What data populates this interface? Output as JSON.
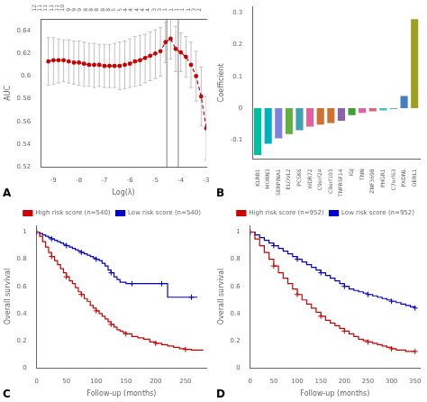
{
  "chart_data": [
    {
      "type": "line",
      "xlabel": "Log(λ)",
      "ylabel": "AUC",
      "x": [
        -9.2,
        -9.0,
        -8.8,
        -8.6,
        -8.4,
        -8.2,
        -8.0,
        -7.8,
        -7.6,
        -7.4,
        -7.2,
        -7.0,
        -6.8,
        -6.6,
        -6.4,
        -6.2,
        -6.0,
        -5.8,
        -5.6,
        -5.4,
        -5.2,
        -5.0,
        -4.8,
        -4.6,
        -4.4,
        -4.2,
        -4.0,
        -3.8,
        -3.6,
        -3.4,
        -3.2,
        -3.0
      ],
      "xlim": [
        -9.5,
        -3.0
      ],
      "xticks": [
        -9,
        -8,
        -7,
        -6,
        -5,
        -4,
        -3
      ],
      "ylim": [
        0.52,
        0.65
      ],
      "yticks": [
        0.52,
        0.54,
        0.56,
        0.58,
        0.6,
        0.62,
        0.64
      ],
      "x2lim": [
        -9.5,
        -3.0
      ],
      "x2ticks": [
        {
          "value": -9.5,
          "label": "12"
        },
        {
          "value": -9.275862069,
          "label": "11"
        },
        {
          "value": -9.0517241379,
          "label": "11"
        },
        {
          "value": -8.8275862069,
          "label": "11"
        },
        {
          "value": -8.6034482759,
          "label": "11"
        },
        {
          "value": -8.3793103448,
          "label": "10"
        },
        {
          "value": -8.1551724138,
          "label": "9"
        },
        {
          "value": -7.9310344828,
          "label": "9"
        },
        {
          "value": -7.7068965517,
          "label": "9"
        },
        {
          "value": -7.4827586207,
          "label": "8"
        },
        {
          "value": -7.2586206897,
          "label": "8"
        },
        {
          "value": -7.0344827586,
          "label": "8"
        },
        {
          "value": -6.8103448276,
          "label": "8"
        },
        {
          "value": -6.5862068966,
          "label": "8"
        },
        {
          "value": -6.3620689655,
          "label": "5"
        },
        {
          "value": -6.1379310345,
          "label": "5"
        },
        {
          "value": -5.9137931034,
          "label": "4"
        },
        {
          "value": -5.6896551724,
          "label": "4"
        },
        {
          "value": -5.4655172414,
          "label": "4"
        },
        {
          "value": -5.2413793103,
          "label": "4"
        },
        {
          "value": -5.0172413793,
          "label": "4"
        },
        {
          "value": -4.7931034483,
          "label": "3"
        },
        {
          "value": -4.5689655172,
          "label": "3"
        },
        {
          "value": -4.3448275862,
          "label": "1"
        },
        {
          "value": -4.1206896552,
          "label": "1"
        },
        {
          "value": -3.8965517241,
          "label": "1"
        },
        {
          "value": -3.6724137931,
          "label": "1"
        },
        {
          "value": -3.4482758621,
          "label": "1"
        },
        {
          "value": -3.224137931,
          "label": "3"
        },
        {
          "value": -3.0,
          "label": "2"
        }
      ],
      "grid": false,
      "annotations": [
        "A"
      ],
      "vlines": {
        "values": [
          -4.55,
          -4.1
        ],
        "color": "#808080"
      },
      "series": [
        {
          "color": "#CC0000",
          "line_style": "dashed",
          "marker": "circle",
          "values": [
            0.613,
            0.614,
            0.614,
            0.614,
            0.613,
            0.612,
            0.612,
            0.611,
            0.61,
            0.61,
            0.61,
            0.609,
            0.609,
            0.609,
            0.609,
            0.61,
            0.611,
            0.613,
            0.614,
            0.616,
            0.618,
            0.62,
            0.622,
            0.63,
            0.633,
            0.624,
            0.621,
            0.617,
            0.61,
            0.6,
            0.582,
            0.554
          ],
          "upper": [
            0.634,
            0.634,
            0.633,
            0.632,
            0.632,
            0.631,
            0.631,
            0.63,
            0.629,
            0.629,
            0.628,
            0.628,
            0.628,
            0.629,
            0.63,
            0.631,
            0.633,
            0.635,
            0.636,
            0.637,
            0.639,
            0.641,
            0.643,
            0.648,
            0.65,
            0.644,
            0.638,
            0.635,
            0.63,
            0.622,
            0.608,
            0.582
          ],
          "lower": [
            0.592,
            0.593,
            0.594,
            0.595,
            0.594,
            0.593,
            0.592,
            0.591,
            0.591,
            0.59,
            0.591,
            0.59,
            0.59,
            0.59,
            0.588,
            0.589,
            0.59,
            0.591,
            0.592,
            0.594,
            0.596,
            0.598,
            0.6,
            0.612,
            0.615,
            0.604,
            0.604,
            0.599,
            0.59,
            0.578,
            0.556,
            0.526
          ],
          "error_color": "#C0C0C0"
        }
      ]
    },
    {
      "type": "bar",
      "ylabel": "Coefficient",
      "categories": [
        "KLRB1",
        "MORN3",
        "SERPINA1",
        "ELOVL2",
        "PCSK6",
        "WDR72",
        "C9orf24",
        "C9orf103",
        "TNFRSF14",
        "IGJ",
        "TNN",
        "ZNF3698",
        "PHGR1",
        "C7orf63",
        "PXDNL",
        "OERL1"
      ],
      "values": [
        -0.148,
        -0.112,
        -0.095,
        -0.082,
        -0.07,
        -0.058,
        -0.052,
        -0.047,
        -0.04,
        -0.022,
        -0.015,
        -0.01,
        -0.007,
        -0.003,
        0.038,
        0.28
      ],
      "colors": [
        "#00C0A0",
        "#00B0C0",
        "#8080E0",
        "#60B040",
        "#40A0B0",
        "#E060A0",
        "#D07030",
        "#D07030",
        "#9060B0",
        "#40A030",
        "#E060A0",
        "#E06080",
        "#40C0C0",
        "#60A0E0",
        "#4080C0",
        "#A0A020"
      ],
      "ylim": [
        -0.16,
        0.32
      ],
      "yticks": [
        -0.1,
        0,
        0.1,
        0.2,
        0.3
      ],
      "grid": false,
      "annotations": [
        "B"
      ]
    },
    {
      "type": "line",
      "xlabel": "Follow-up (months)",
      "ylabel": "Overall survival",
      "xlim": [
        0,
        285
      ],
      "xticks": [
        0,
        50,
        100,
        150,
        200,
        250
      ],
      "ylim": [
        0,
        1.05
      ],
      "yticks": [
        0,
        0.2,
        0.4,
        0.6,
        0.8,
        1
      ],
      "grid": false,
      "legend": "upper right",
      "annotations": [
        "C"
      ],
      "series": [
        {
          "name": "High risk score (n=540)",
          "color": "#CC0000",
          "line_style": "steps",
          "marker": "plus",
          "x": [
            0,
            5,
            10,
            15,
            20,
            25,
            30,
            35,
            40,
            45,
            50,
            55,
            60,
            65,
            70,
            75,
            80,
            85,
            90,
            95,
            100,
            105,
            110,
            115,
            120,
            125,
            130,
            135,
            140,
            145,
            150,
            160,
            170,
            180,
            190,
            200,
            210,
            220,
            230,
            240,
            250,
            260,
            270,
            280
          ],
          "values": [
            1.0,
            0.97,
            0.93,
            0.89,
            0.85,
            0.82,
            0.79,
            0.76,
            0.73,
            0.7,
            0.67,
            0.64,
            0.62,
            0.59,
            0.56,
            0.54,
            0.51,
            0.49,
            0.46,
            0.44,
            0.42,
            0.4,
            0.38,
            0.36,
            0.34,
            0.32,
            0.3,
            0.28,
            0.27,
            0.26,
            0.25,
            0.23,
            0.22,
            0.21,
            0.19,
            0.18,
            0.17,
            0.16,
            0.15,
            0.14,
            0.135,
            0.13,
            0.13,
            0.13
          ],
          "censor_x": [
            0,
            25,
            50,
            75,
            100,
            125,
            150,
            200,
            250
          ],
          "censor_y": [
            1.0,
            0.82,
            0.67,
            0.54,
            0.42,
            0.32,
            0.25,
            0.18,
            0.135
          ]
        },
        {
          "name": "Low risk score (n=540)",
          "color": "#0000CC",
          "line_style": "steps",
          "marker": "plus",
          "x": [
            0,
            5,
            10,
            15,
            20,
            25,
            30,
            35,
            40,
            45,
            50,
            55,
            60,
            65,
            70,
            75,
            80,
            85,
            90,
            95,
            100,
            105,
            110,
            115,
            120,
            125,
            130,
            135,
            140,
            150,
            160,
            170,
            180,
            190,
            200,
            210,
            220,
            230,
            240,
            250,
            260,
            270
          ],
          "values": [
            1.0,
            0.99,
            0.98,
            0.97,
            0.96,
            0.95,
            0.94,
            0.93,
            0.92,
            0.91,
            0.9,
            0.89,
            0.88,
            0.87,
            0.86,
            0.85,
            0.84,
            0.83,
            0.82,
            0.81,
            0.8,
            0.79,
            0.77,
            0.75,
            0.72,
            0.7,
            0.67,
            0.65,
            0.63,
            0.62,
            0.62,
            0.62,
            0.62,
            0.62,
            0.62,
            0.62,
            0.52,
            0.52,
            0.52,
            0.52,
            0.52,
            0.52
          ],
          "censor_x": [
            0,
            25,
            50,
            75,
            100,
            125,
            160,
            210,
            260
          ],
          "censor_y": [
            1.0,
            0.95,
            0.9,
            0.85,
            0.8,
            0.7,
            0.62,
            0.62,
            0.52
          ]
        }
      ]
    },
    {
      "type": "line",
      "xlabel": "Follow-up (months)",
      "ylabel": "Overall survival",
      "xlim": [
        0,
        360
      ],
      "xticks": [
        0,
        50,
        100,
        150,
        200,
        250,
        300,
        350
      ],
      "ylim": [
        0,
        1.05
      ],
      "yticks": [
        0,
        0.2,
        0.4,
        0.6,
        0.8,
        1
      ],
      "grid": false,
      "legend": "upper right",
      "annotations": [
        "D"
      ],
      "series": [
        {
          "name": "High risk score (n=952)",
          "color": "#CC0000",
          "line_style": "steps",
          "marker": "plus",
          "x": [
            0,
            10,
            20,
            30,
            40,
            50,
            60,
            70,
            80,
            90,
            100,
            110,
            120,
            130,
            140,
            150,
            160,
            170,
            180,
            190,
            200,
            210,
            220,
            230,
            240,
            250,
            260,
            270,
            280,
            290,
            300,
            310,
            320,
            330,
            340,
            350
          ],
          "values": [
            1.0,
            0.95,
            0.9,
            0.85,
            0.8,
            0.75,
            0.7,
            0.66,
            0.62,
            0.58,
            0.54,
            0.5,
            0.47,
            0.44,
            0.41,
            0.38,
            0.35,
            0.33,
            0.31,
            0.29,
            0.27,
            0.25,
            0.23,
            0.21,
            0.2,
            0.19,
            0.18,
            0.17,
            0.16,
            0.15,
            0.14,
            0.13,
            0.13,
            0.12,
            0.12,
            0.12
          ],
          "censor_x": [
            0,
            50,
            100,
            150,
            200,
            250,
            300,
            350
          ],
          "censor_y": [
            1.0,
            0.75,
            0.54,
            0.38,
            0.27,
            0.19,
            0.14,
            0.12
          ]
        },
        {
          "name": "Low risk score (n=952)",
          "color": "#0000CC",
          "line_style": "steps",
          "marker": "plus",
          "x": [
            0,
            10,
            20,
            30,
            40,
            50,
            60,
            70,
            80,
            90,
            100,
            110,
            120,
            130,
            140,
            150,
            160,
            170,
            180,
            190,
            200,
            210,
            220,
            230,
            240,
            250,
            260,
            270,
            280,
            290,
            300,
            310,
            320,
            330,
            340,
            350
          ],
          "values": [
            1.0,
            0.98,
            0.96,
            0.94,
            0.92,
            0.9,
            0.88,
            0.86,
            0.84,
            0.82,
            0.8,
            0.78,
            0.76,
            0.74,
            0.72,
            0.7,
            0.68,
            0.66,
            0.64,
            0.62,
            0.6,
            0.58,
            0.57,
            0.56,
            0.55,
            0.54,
            0.53,
            0.52,
            0.51,
            0.5,
            0.49,
            0.48,
            0.47,
            0.46,
            0.45,
            0.44
          ],
          "censor_x": [
            0,
            50,
            100,
            150,
            200,
            250,
            300,
            350
          ],
          "censor_y": [
            1.0,
            0.9,
            0.8,
            0.7,
            0.6,
            0.54,
            0.49,
            0.44
          ]
        }
      ]
    }
  ]
}
